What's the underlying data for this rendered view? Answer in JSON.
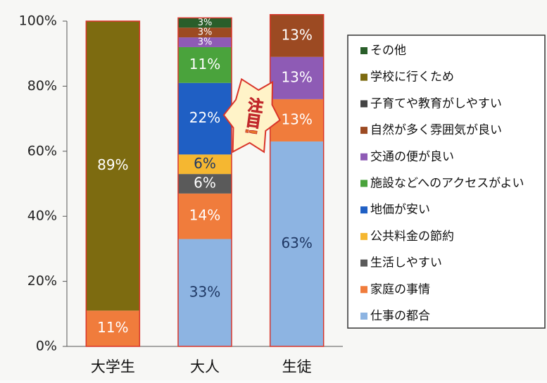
{
  "chart_data": {
    "type": "stacked_bar",
    "categories": [
      "大学生",
      "大人",
      "生徒"
    ],
    "ylim": [
      0,
      100
    ],
    "yticks": [
      {
        "value": 0,
        "label": "0%"
      },
      {
        "value": 20,
        "label": "20%"
      },
      {
        "value": 40,
        "label": "40%"
      },
      {
        "value": 60,
        "label": "60%"
      },
      {
        "value": 80,
        "label": "80%"
      },
      {
        "value": 100,
        "label": "100%"
      }
    ],
    "series": [
      {
        "name": "仕事の都合",
        "color": "#8db4e2",
        "values": [
          null,
          33,
          63
        ],
        "value_labels": [
          null,
          "33%",
          "63%"
        ]
      },
      {
        "name": "家庭の事情",
        "color": "#f07c3c",
        "values": [
          11,
          14,
          13
        ],
        "value_labels": [
          "11%",
          "14%",
          "13%"
        ]
      },
      {
        "name": "生活しやすい",
        "color": "#5a5a5a",
        "values": [
          null,
          6,
          null
        ],
        "value_labels": [
          null,
          "6%",
          null
        ]
      },
      {
        "name": "公共料金の節約",
        "color": "#f5b731",
        "values": [
          null,
          6,
          null
        ],
        "value_labels": [
          null,
          "6%",
          null
        ]
      },
      {
        "name": "地価が安い",
        "color": "#1f5fc4",
        "values": [
          null,
          22,
          null
        ],
        "value_labels": [
          null,
          "22%",
          null
        ]
      },
      {
        "name": "施設などへのアクセスがよい",
        "color": "#4aa33c",
        "values": [
          null,
          11,
          null
        ],
        "value_labels": [
          null,
          "11%",
          null
        ]
      },
      {
        "name": "交通の便が良い",
        "color": "#8e5bb5",
        "values": [
          null,
          3,
          13
        ],
        "value_labels": [
          null,
          "3%",
          "13%"
        ]
      },
      {
        "name": "自然が多く雰囲気が良い",
        "color": "#9c4a22",
        "values": [
          null,
          3,
          13
        ],
        "value_labels": [
          null,
          "3%",
          "13%"
        ]
      },
      {
        "name": "子育てや教育がしやすい",
        "color": "#444444",
        "values": [
          null,
          null,
          null
        ],
        "value_labels": [
          null,
          null,
          null
        ]
      },
      {
        "name": "学校に行くため",
        "color": "#7d6b10",
        "values": [
          89,
          null,
          null
        ],
        "value_labels": [
          "89%",
          null,
          null
        ]
      },
      {
        "name": "その他",
        "color": "#2a5e2a",
        "values": [
          null,
          3,
          null
        ],
        "value_labels": [
          null,
          "3%",
          null
        ]
      }
    ],
    "annotation": "注目!",
    "legend": "right"
  }
}
